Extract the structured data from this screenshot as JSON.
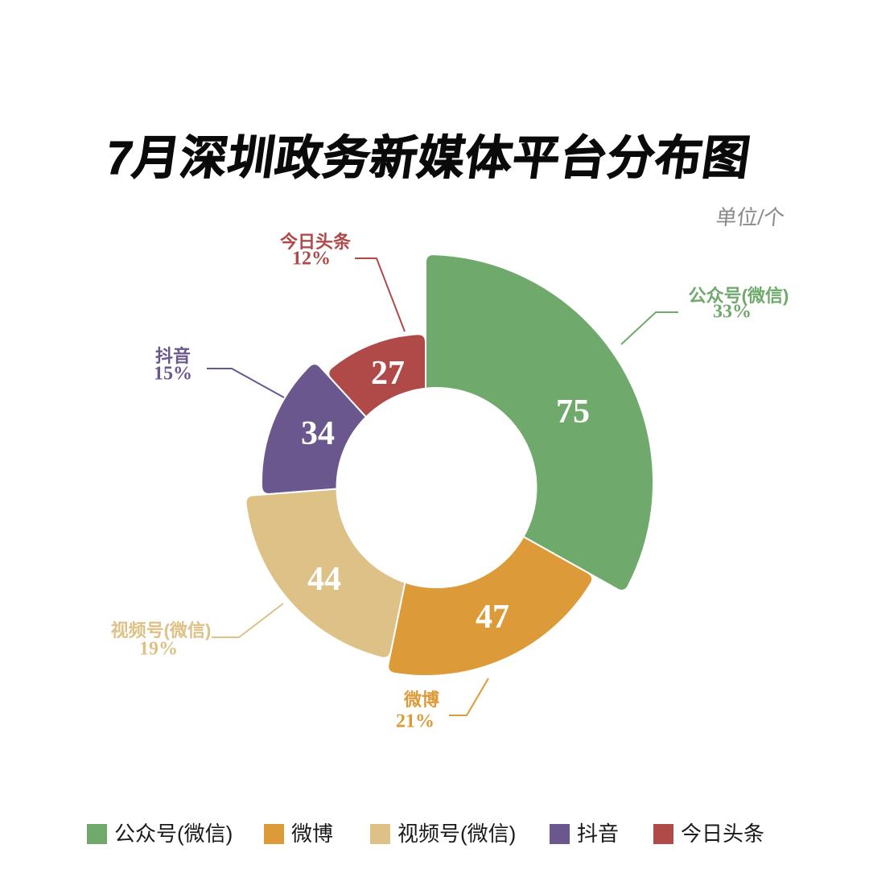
{
  "title": "7月深圳政务新媒体平台分布图",
  "unit_label": "单位/个",
  "chart_data": {
    "type": "pie",
    "subtype": "rose-donut",
    "title": "7月深圳政务新媒体平台分布图",
    "unit": "单位/个",
    "legend_position": "bottom",
    "items": [
      {
        "label": "公众号(微信)",
        "value": 75,
        "pct": "33%",
        "color": "#6fa96b"
      },
      {
        "label": "微博",
        "value": 47,
        "pct": "21%",
        "color": "#dc9a38"
      },
      {
        "label": "视频号(微信)",
        "value": 44,
        "pct": "19%",
        "color": "#ddc186"
      },
      {
        "label": "抖音",
        "value": 34,
        "pct": "15%",
        "color": "#6a578e"
      },
      {
        "label": "今日头条",
        "value": 27,
        "pct": "12%",
        "color": "#b04a48"
      }
    ],
    "legend": [
      "公众号(微信)",
      "微博",
      "视频号(微信)",
      "抖音",
      "今日头条"
    ]
  }
}
